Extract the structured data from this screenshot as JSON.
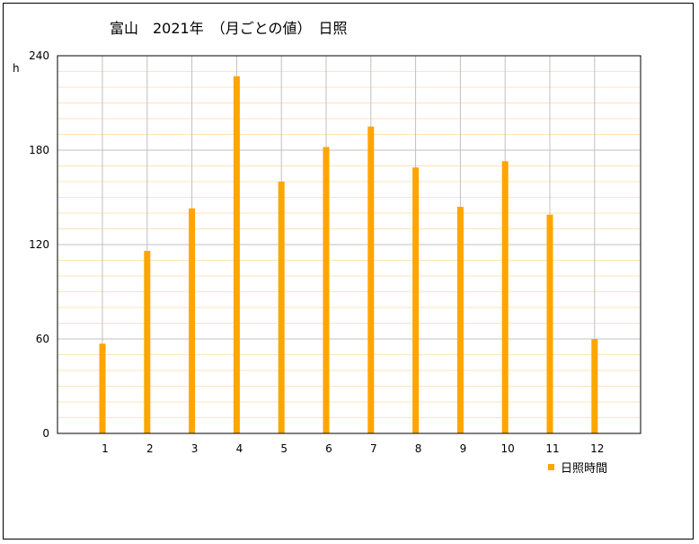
{
  "chart_data": {
    "type": "bar",
    "title": "富山　2021年　（月ごとの値）　日照",
    "ylabel": "h",
    "xlabel": "",
    "categories": [
      "1",
      "2",
      "3",
      "4",
      "5",
      "6",
      "7",
      "8",
      "9",
      "10",
      "11",
      "12"
    ],
    "series": [
      {
        "name": "日照時間",
        "values": [
          57,
          116,
          143,
          227,
          160,
          182,
          195,
          169,
          144,
          173,
          139,
          60
        ]
      }
    ],
    "ylim": [
      0,
      240
    ],
    "yticks": [
      "0",
      "60",
      "120",
      "180",
      "240"
    ],
    "grid": true,
    "legend_position": "bottom-right",
    "colors": {
      "bar": "#FFA500",
      "major_grid": "#c0c0c0",
      "minor_grid": "#ffe4b8",
      "vertical_grid": "#c0c0c0"
    }
  }
}
